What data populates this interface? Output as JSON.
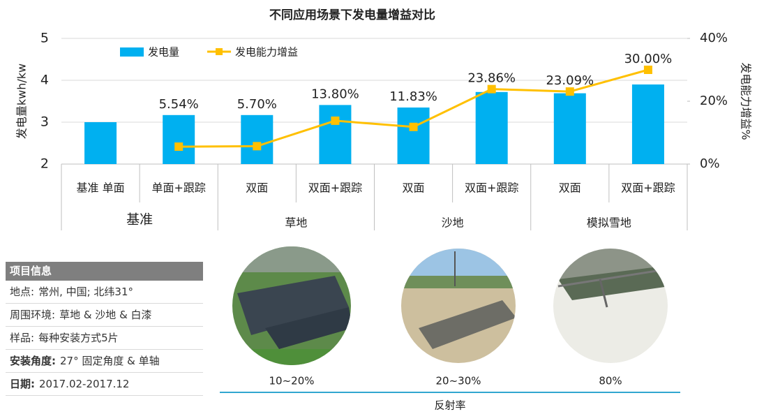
{
  "chart_data": {
    "type": "bar",
    "title": "不同应用场景下发电量增益对比",
    "y_label": "发电量kwh/kw",
    "y2_label": "发电能力增益%",
    "groups": [
      {
        "label": "基准",
        "categories": [
          "基准 单面",
          "单面+跟踪"
        ]
      },
      {
        "label": "草地",
        "categories": [
          "双面",
          "双面+跟踪"
        ]
      },
      {
        "label": "沙地",
        "categories": [
          "双面",
          "双面+跟踪"
        ]
      },
      {
        "label": "模拟雪地",
        "categories": [
          "双面",
          "双面+跟踪"
        ]
      }
    ],
    "series": [
      {
        "name": "发电量",
        "type": "bar",
        "color": "#00b0f0",
        "values": [
          3.0,
          3.17,
          3.17,
          3.41,
          3.35,
          3.72,
          3.69,
          3.9
        ]
      },
      {
        "name": "发电能力增益",
        "type": "line",
        "axis": "y2",
        "color": "#ffc000",
        "values": [
          null,
          5.54,
          5.7,
          13.8,
          11.83,
          23.86,
          23.09,
          30.0
        ],
        "value_labels": [
          null,
          "5.54%",
          "5.70%",
          "13.80%",
          "11.83%",
          "23.86%",
          "23.09%",
          "30.00%"
        ]
      }
    ],
    "ylim": [
      2,
      5
    ],
    "yticks": [
      2,
      3,
      4,
      5
    ],
    "y2lim": [
      0,
      40
    ],
    "y2ticks": [
      {
        "value": 0,
        "label": "0%"
      },
      {
        "value": 20,
        "label": "20%"
      },
      {
        "value": 40,
        "label": "40%"
      }
    ],
    "grid": true,
    "legend": "top-left"
  },
  "info": {
    "title": "项目信息",
    "rows": [
      {
        "label": "地点:",
        "text": "常州, 中国; 北纬31°",
        "bold": false
      },
      {
        "label": "周围环境:",
        "text": "草地 & 沙地 & 白漆",
        "bold": false
      },
      {
        "label": "样品:",
        "text": "每种安装方式5片",
        "bold": false
      },
      {
        "label": "安装角度:",
        "text": "27° 固定角度 & 单轴",
        "bold": true
      },
      {
        "label": "日期:",
        "text": "2017.02-2017.12",
        "bold": true
      }
    ]
  },
  "photos": [
    {
      "caption": "10~20%"
    },
    {
      "caption": "20~30%"
    },
    {
      "caption": "80%"
    }
  ],
  "photo_axis_label": "反射率"
}
